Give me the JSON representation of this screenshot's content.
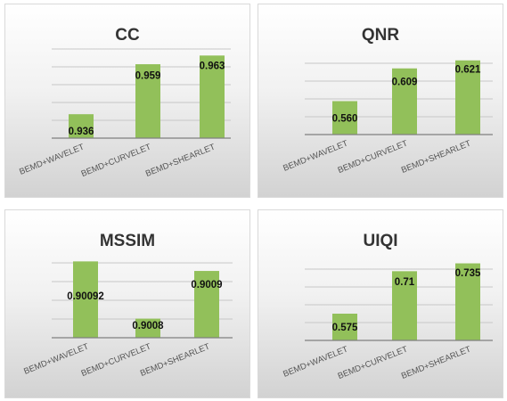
{
  "chart_data": [
    {
      "type": "bar",
      "title": "CC",
      "categories": [
        "BEMD+WAVELET",
        "BEMD+CURVELET",
        "BEMD+SHEARLET"
      ],
      "values": [
        0.936,
        0.959,
        0.963
      ],
      "data_labels": [
        "0.936",
        "0.959",
        "0.963"
      ],
      "ylim": [
        0.925,
        0.966
      ],
      "grid": true,
      "legend": "none",
      "color": "#92C05A"
    },
    {
      "type": "bar",
      "title": "QNR",
      "categories": [
        "BEMD+WAVELET",
        "BEMD+CURVELET",
        "BEMD+SHEARLET"
      ],
      "values": [
        0.56,
        0.609,
        0.621
      ],
      "data_labels": [
        "0.560",
        "0.609",
        "0.621"
      ],
      "ylim": [
        0.51,
        0.63
      ],
      "grid": true,
      "legend": "none",
      "color": "#92C05A"
    },
    {
      "type": "bar",
      "title": "MSSIM",
      "categories": [
        "BEMD+WAVELET",
        "BEMD+CURVELET",
        "BEMD+SHEARLET"
      ],
      "values": [
        0.90092,
        0.9008,
        0.9009
      ],
      "data_labels": [
        "0.90092",
        "0.9008",
        "0.9009"
      ],
      "ylim": [
        0.90076,
        0.90093
      ],
      "grid": true,
      "legend": "none",
      "color": "#92C05A"
    },
    {
      "type": "bar",
      "title": "UIQI",
      "categories": [
        "BEMD+WAVELET",
        "BEMD+CURVELET",
        "BEMD+SHEARLET"
      ],
      "values": [
        0.575,
        0.71,
        0.735
      ],
      "data_labels": [
        "0.575",
        "0.71",
        "0.735"
      ],
      "ylim": [
        0.49,
        0.745
      ],
      "grid": true,
      "legend": "none",
      "color": "#92C05A"
    }
  ]
}
